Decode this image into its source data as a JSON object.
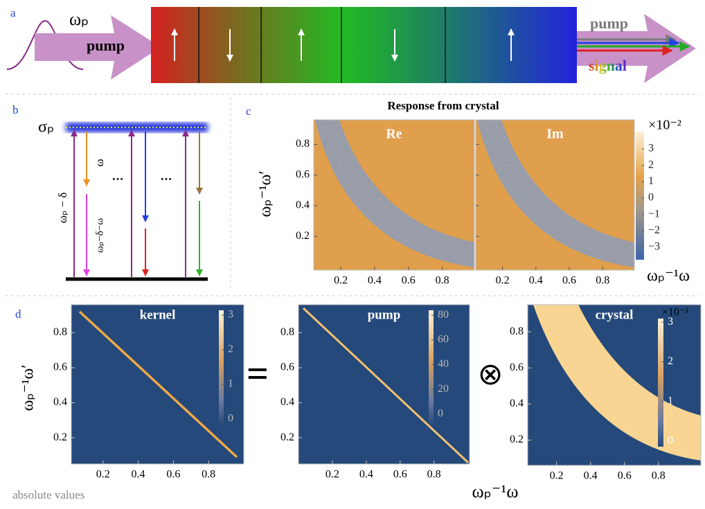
{
  "panel_a": {
    "label": "a",
    "pump_frequency": "ωₚ",
    "input_label": "pump",
    "output_pump": "pump",
    "output_signal": "signal"
  },
  "panel_b": {
    "label": "b",
    "level": "σₚ",
    "transitions": [
      "ωₚ − δ",
      "ω",
      "ωₚ−δ−ω"
    ],
    "ellipsis": [
      "⋯",
      "⋯"
    ]
  },
  "panel_c": {
    "label": "c",
    "title": "Response from crystal",
    "xlabel": "ωₚ⁻¹ω",
    "ylabel": "ωₚ⁻¹ω′",
    "xlim": [
      0.04,
      0.99
    ],
    "ylim": [
      -0.02,
      0.96
    ],
    "xticks": [
      0.2,
      0.4,
      0.6,
      0.8
    ],
    "yticks": [
      0.2,
      0.4,
      0.6,
      0.8
    ],
    "plots": [
      {
        "title": "Re"
      },
      {
        "title": "Im"
      }
    ],
    "colorbar": {
      "multiplier": "×10⁻²",
      "lim": [
        -3.76,
        4.06
      ],
      "ticks": [
        {
          "value": 3,
          "label": "3"
        },
        {
          "value": 2,
          "label": "2"
        },
        {
          "value": 1,
          "label": "1"
        },
        {
          "value": 0,
          "label": "0"
        },
        {
          "value": -1,
          "label": "−1"
        },
        {
          "value": -2,
          "label": "−2"
        },
        {
          "value": -3,
          "label": "−3"
        }
      ]
    }
  },
  "panel_d": {
    "label": "d",
    "xlabel": "ωₚ⁻¹ω",
    "ylabel": "ωₚ⁻¹ω′",
    "operators": [
      "=",
      "⊗"
    ],
    "plots": [
      {
        "title": "kernel",
        "xlim": [
          0.02,
          1.0
        ],
        "ylim": [
          0.05,
          0.96
        ],
        "xticks": [
          0.2,
          0.4,
          0.6,
          0.8
        ],
        "yticks": [
          0.2,
          0.4,
          0.6,
          0.8
        ],
        "colorbar": {
          "lim": [
            -0.14,
            3.14
          ],
          "ticks": [
            0,
            1,
            2,
            3
          ]
        }
      },
      {
        "title": "pump",
        "xlim": [
          0.0,
          1.01
        ],
        "ylim": [
          0.05,
          0.96
        ],
        "xticks": [
          0.2,
          0.4,
          0.6,
          0.8
        ],
        "yticks": [
          0.2,
          0.4,
          0.6,
          0.8
        ],
        "colorbar": {
          "lim": [
            -8,
            84
          ],
          "ticks": [
            0,
            20,
            40,
            60,
            80
          ]
        }
      },
      {
        "title": "crystal",
        "xlim": [
          0.03,
          1.05
        ],
        "ylim": [
          0.06,
          0.95
        ],
        "xticks": [
          0.2,
          0.4,
          0.6,
          0.8
        ],
        "yticks": [
          0.2,
          0.4,
          0.6,
          0.8
        ],
        "colorbar": {
          "multiplier": "×10⁻²",
          "lim": [
            -0.14,
            3.09
          ],
          "ticks": [
            0,
            1,
            2,
            3
          ]
        }
      }
    ]
  },
  "note": "absolute values"
}
